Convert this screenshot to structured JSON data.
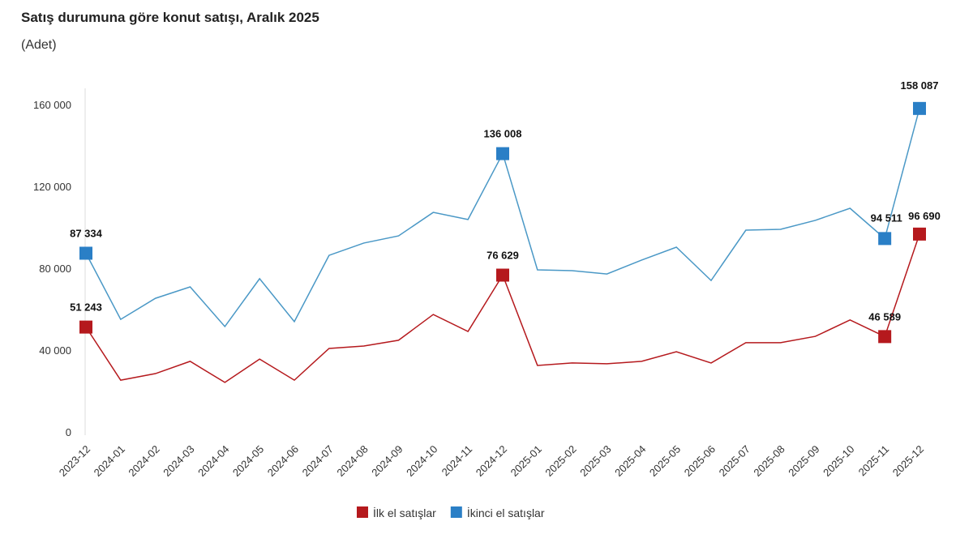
{
  "chart_data": {
    "type": "line",
    "title": "Satış durumuna göre konut satışı, Aralık 2025",
    "subtitle": "(Adet)",
    "xlabel": "",
    "ylabel": "",
    "ylim": [
      0,
      160000
    ],
    "yticks": [
      0,
      40000,
      80000,
      120000,
      160000
    ],
    "ytick_labels": [
      "0",
      "40 000",
      "80 000",
      "120 000",
      "160 000"
    ],
    "grid": false,
    "legend_position": "bottom",
    "categories": [
      "2023-12",
      "2024-01",
      "2024-02",
      "2024-03",
      "2024-04",
      "2024-05",
      "2024-06",
      "2024-07",
      "2024-08",
      "2024-09",
      "2024-10",
      "2024-11",
      "2024-12",
      "2025-01",
      "2025-02",
      "2025-03",
      "2025-04",
      "2025-05",
      "2025-06",
      "2025-07",
      "2025-08",
      "2025-09",
      "2025-10",
      "2025-11",
      "2025-12"
    ],
    "series": [
      {
        "name": "İlk el satışlar",
        "color": "#b5191d",
        "values": [
          51243,
          25300,
          28500,
          34500,
          24200,
          35600,
          25300,
          40800,
          42000,
          44800,
          57400,
          49100,
          76629,
          32500,
          33700,
          33300,
          34500,
          39200,
          33700,
          43600,
          43600,
          46700,
          54700,
          46589,
          96690
        ],
        "labels": {
          "0": "51 243",
          "12": "76 629",
          "23": "46 589",
          "24": "96 690"
        }
      },
      {
        "name": "İkinci el satışlar",
        "color": "#2a7fc6",
        "line_color": "#4a98c6",
        "values": [
          87334,
          55000,
          65300,
          70900,
          51500,
          74900,
          53900,
          86300,
          92300,
          95800,
          107300,
          103800,
          136008,
          79200,
          78800,
          77200,
          84000,
          90300,
          74000,
          98600,
          99000,
          103400,
          109300,
          94511,
          158087
        ],
        "labels": {
          "0": "87 334",
          "12": "136 008",
          "23": "94 511",
          "24": "158 087"
        }
      }
    ]
  }
}
